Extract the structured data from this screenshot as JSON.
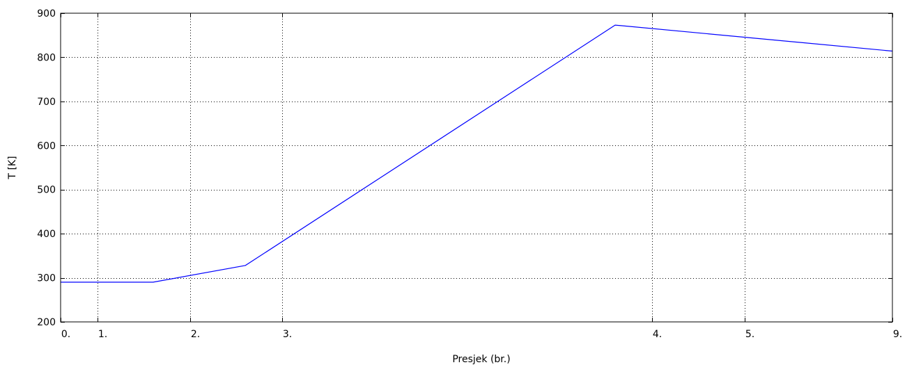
{
  "chart_data": {
    "type": "line",
    "title": "",
    "xlabel": "Presjek (br.)",
    "ylabel": "T [K]",
    "xlim": [
      0,
      9
    ],
    "ylim": [
      200,
      900
    ],
    "x_ticks": [
      {
        "value": 0,
        "label": "0."
      },
      {
        "value": 0.4,
        "label": "1."
      },
      {
        "value": 1.4,
        "label": "2."
      },
      {
        "value": 2.4,
        "label": "3."
      },
      {
        "value": 6.4,
        "label": "4."
      },
      {
        "value": 7.4,
        "label": "5."
      },
      {
        "value": 9,
        "label": "9."
      }
    ],
    "y_ticks": [
      200,
      300,
      400,
      500,
      600,
      700,
      800,
      900
    ],
    "grid": true,
    "series": [
      {
        "color": "#0000ff",
        "x": [
          0,
          1,
          2,
          6,
          9
        ],
        "y": [
          290,
          290,
          328,
          873,
          814
        ]
      }
    ]
  }
}
